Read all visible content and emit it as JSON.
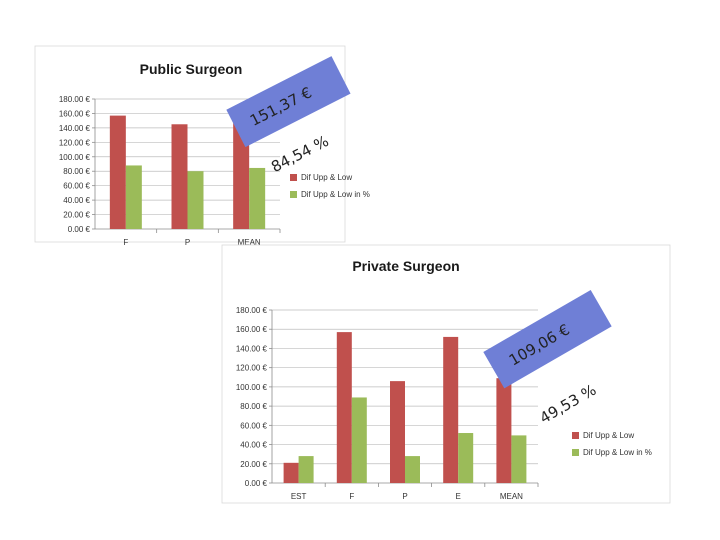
{
  "chart_data": [
    {
      "type": "bar",
      "title": "Public Surgeon",
      "categories": [
        "F",
        "P",
        "MEAN"
      ],
      "series": [
        {
          "name": "Dif Upp & Low",
          "values": [
            157,
            145,
            151.37
          ],
          "color": "#c0504d"
        },
        {
          "name": "Dif Upp & Low in %",
          "values": [
            88,
            80,
            84.54
          ],
          "color": "#9bbb59"
        }
      ],
      "ylim": [
        0,
        180
      ],
      "ytick_labels": [
        "0.00 €",
        "20.00 €",
        "40.00 €",
        "60.00 €",
        "80.00 €",
        "100.00 €",
        "120.00 €",
        "140.00 €",
        "160.00 €",
        "180.00 €"
      ],
      "grid": true,
      "legend_position": "right",
      "annotations": [
        {
          "text": "151,37 €",
          "style": "blue-banner"
        },
        {
          "text": "84,54 %",
          "style": "plain"
        }
      ]
    },
    {
      "type": "bar",
      "title": "Private Surgeon",
      "categories": [
        "EST",
        "F",
        "P",
        "E",
        "MEAN"
      ],
      "series": [
        {
          "name": "Dif Upp & Low",
          "values": [
            21,
            157,
            106,
            152,
            109.06
          ],
          "color": "#c0504d"
        },
        {
          "name": "Dif Upp & Low in %",
          "values": [
            28,
            89,
            28,
            52,
            49.53
          ],
          "color": "#9bbb59"
        }
      ],
      "ylim": [
        0,
        180
      ],
      "ytick_labels": [
        "0.00 €",
        "20.00 €",
        "40.00 €",
        "60.00 €",
        "80.00 €",
        "100.00 €",
        "120.00 €",
        "140.00 €",
        "160.00 €",
        "180.00 €"
      ],
      "grid": true,
      "legend_position": "right",
      "annotations": [
        {
          "text": "109,06 €",
          "style": "blue-banner"
        },
        {
          "text": "49,53 %",
          "style": "plain"
        }
      ]
    }
  ],
  "banner_color": "#6f7fd6"
}
